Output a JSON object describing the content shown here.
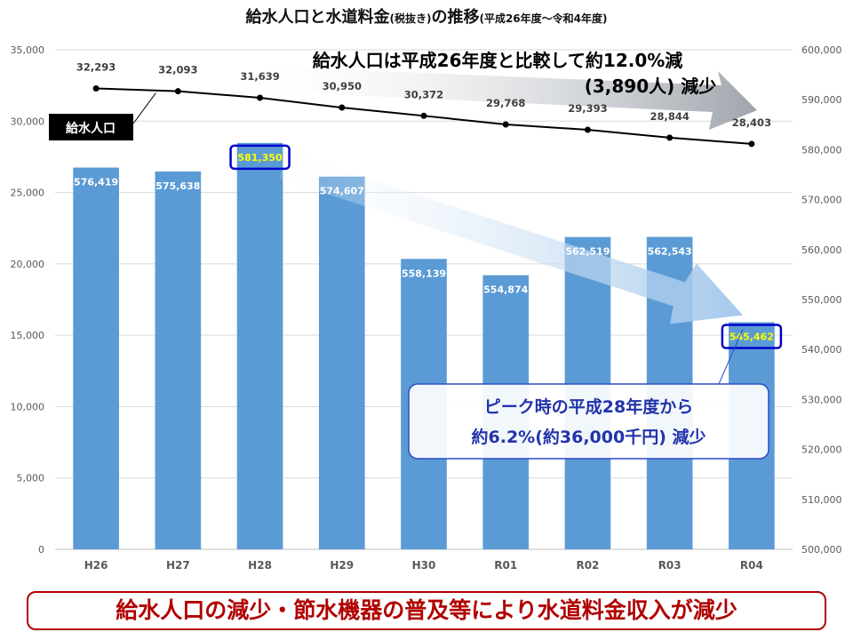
{
  "title": {
    "main": "給水人口と水道料金",
    "small": "(税抜き)",
    "suffix": "の推移",
    "period": "(平成26年度～令和4年度)"
  },
  "chart_data": {
    "type": "bar",
    "categories": [
      "H26",
      "H27",
      "H28",
      "H29",
      "H30",
      "R01",
      "R02",
      "R03",
      "R04"
    ],
    "series": [
      {
        "name": "",
        "type": "bar",
        "axis": "right",
        "color": "#5b9bd5",
        "values": [
          576419,
          575638,
          581350,
          574607,
          558139,
          554874,
          562519,
          562543,
          545462
        ],
        "labels": [
          "576,419",
          "575,638",
          "581,350",
          "574,607",
          "558,139",
          "554,874",
          "562,519",
          "562,543",
          "545,462"
        ]
      },
      {
        "name": "給水人口",
        "type": "line",
        "axis": "left",
        "color": "#000000",
        "values": [
          32293,
          32093,
          31639,
          30950,
          30372,
          29768,
          29393,
          28844,
          28403
        ],
        "labels": [
          "32,293",
          "32,093",
          "31,639",
          "30,950",
          "30,372",
          "29,768",
          "29,393",
          "28,844",
          "28,403"
        ]
      }
    ],
    "left_axis": {
      "ylim": [
        0,
        35000
      ],
      "ticks": [
        "0",
        "5,000",
        "10,000",
        "15,000",
        "20,000",
        "25,000",
        "30,000",
        "35,000"
      ]
    },
    "right_axis": {
      "ylim": [
        500000,
        600000
      ],
      "ticks": [
        "500,000",
        "510,000",
        "520,000",
        "530,000",
        "540,000",
        "550,000",
        "560,000",
        "570,000",
        "580,000",
        "590,000",
        "600,000"
      ]
    },
    "highlighted_labels": [
      "H28",
      "R04"
    ],
    "highlight_color": "#ffff00",
    "highlight_box_color": "#0000cc",
    "grid": true,
    "annotations": {
      "population_label": "給水人口",
      "population_note_line1": "給水人口は平成26年度と比較して約12.0%減",
      "population_note_line2": "(3,890人) 減少",
      "revenue_note_line1": "ピーク時の平成28年度から",
      "revenue_note_line2": "約6.2%(約36,000千円) 減少"
    }
  },
  "footer": {
    "text": "給水人口の減少・節水機器の普及等により水道料金収入が減少",
    "color": "#b00000"
  }
}
